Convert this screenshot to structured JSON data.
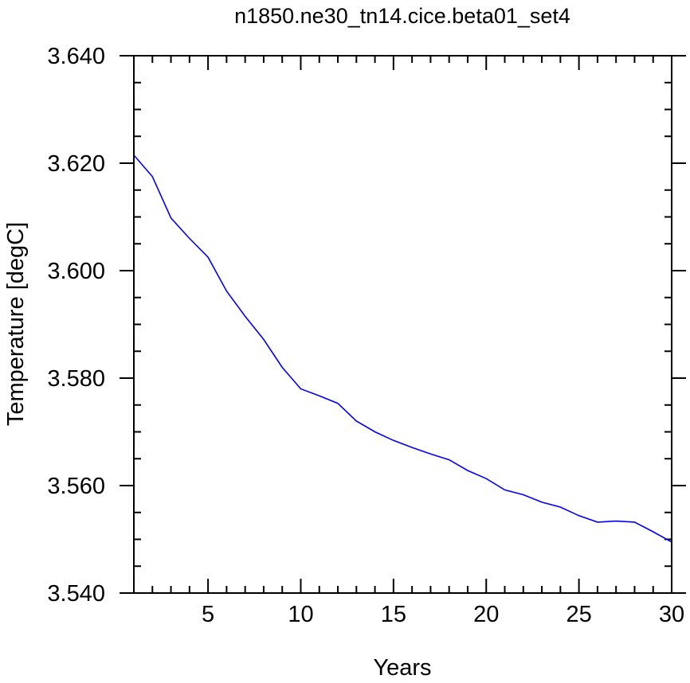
{
  "chart_data": {
    "type": "line",
    "title": "n1850.ne30_tn14.cice.beta01_set4",
    "xlabel": "Years",
    "ylabel": "Temperature [degC]",
    "xlim": [
      1,
      30
    ],
    "ylim": [
      3.54,
      3.64
    ],
    "x_ticks": [
      5,
      10,
      15,
      20,
      25,
      30
    ],
    "x_tick_labels": [
      "5",
      "10",
      "15",
      "20",
      "25",
      "30"
    ],
    "y_ticks": [
      3.54,
      3.56,
      3.58,
      3.6,
      3.62,
      3.64
    ],
    "y_tick_labels": [
      "3.540",
      "3.560",
      "3.580",
      "3.600",
      "3.620",
      "3.640"
    ],
    "grid": false,
    "series": [
      {
        "color": "#0000ff",
        "x": [
          1,
          2,
          3,
          4,
          5,
          6,
          7,
          8,
          9,
          10,
          11,
          12,
          13,
          14,
          15,
          16,
          17,
          18,
          19,
          20,
          21,
          22,
          23,
          24,
          25,
          26,
          27,
          28,
          29,
          30
        ],
        "y": [
          3.6215,
          3.6175,
          3.6098,
          3.606,
          3.6025,
          3.5962,
          3.5915,
          3.5872,
          3.582,
          3.578,
          3.5767,
          3.5753,
          3.572,
          3.57,
          3.5684,
          3.5671,
          3.5659,
          3.5648,
          3.5628,
          3.5613,
          3.5592,
          3.5583,
          3.5569,
          3.556,
          3.5544,
          3.5532,
          3.5534,
          3.5532,
          3.5514,
          3.5495
        ]
      }
    ]
  }
}
